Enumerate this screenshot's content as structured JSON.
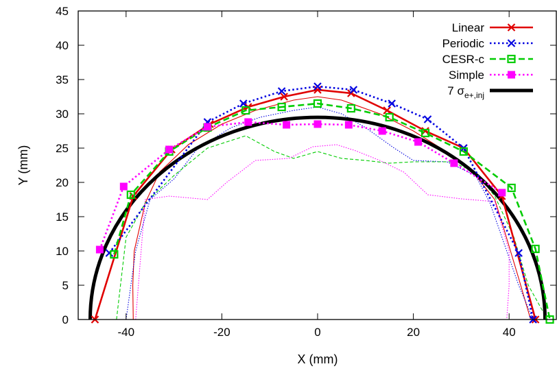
{
  "chart_data": {
    "type": "line",
    "xlabel": "X (mm)",
    "ylabel": "Y (mm)",
    "xlim": [
      -50,
      50
    ],
    "ylim": [
      0,
      45
    ],
    "xticks": [
      -40,
      -20,
      0,
      20,
      40
    ],
    "yticks": [
      0,
      5,
      10,
      15,
      20,
      25,
      30,
      35,
      40,
      45
    ],
    "grid": false,
    "legend_position": "top-right",
    "series": [
      {
        "name": "Linear",
        "color": "#e00000",
        "dash": "solid",
        "marker": "x",
        "x": [
          -46.5,
          -38.5,
          -30.5,
          -22.5,
          -14.5,
          -7.0,
          0,
          7.0,
          14.5,
          22.5,
          30.5,
          38.5,
          45.5
        ],
        "y": [
          0,
          18,
          24.8,
          28.5,
          31.0,
          32.5,
          33.5,
          33.0,
          30.5,
          27.5,
          25.0,
          18.0,
          0
        ]
      },
      {
        "name": "Periodic",
        "color": "#0000e0",
        "dash": "dotted",
        "marker": "x",
        "x": [
          -43.5,
          -23,
          -15.5,
          -7.5,
          0,
          7.5,
          15.5,
          23,
          30.5,
          42,
          45
        ],
        "y": [
          9.7,
          28.8,
          31.5,
          33.3,
          34.0,
          33.5,
          31.5,
          29.2,
          25.0,
          9.7,
          0
        ]
      },
      {
        "name": "CESR-c",
        "color": "#00cc00",
        "dash": "dashed",
        "marker": "square",
        "x": [
          -42.5,
          -39,
          -31,
          -23,
          -15,
          -7.5,
          0,
          7,
          15,
          22.5,
          30.5,
          40.5,
          45.5,
          48.5
        ],
        "y": [
          9.5,
          18.2,
          24.5,
          28.0,
          30.5,
          31.0,
          31.5,
          30.8,
          29.5,
          27.2,
          24.5,
          19.2,
          10.3,
          0
        ]
      },
      {
        "name": "Simple",
        "color": "#ff00ff",
        "dash": "dotted",
        "marker": "filled-square",
        "x": [
          -45.5,
          -40.5,
          -31,
          -23,
          -14.5,
          -6.5,
          0,
          6.5,
          13.5,
          21,
          28.5,
          38.5
        ],
        "y": [
          10.2,
          19.4,
          24.8,
          28.1,
          28.8,
          28.4,
          28.5,
          28.4,
          27.5,
          25.9,
          22.8,
          18.5
        ]
      },
      {
        "name": "7 σe+,inj",
        "color": "#000000",
        "dash": "solid",
        "marker": "none",
        "ellipse_semi_axes": [
          47.5,
          29.5
        ]
      }
    ],
    "thin_curves": [
      {
        "color": "#e00000",
        "dash": "solid",
        "x": [
          -38.5,
          -38.6,
          -38.3,
          -36,
          -33,
          -27,
          -20,
          -13,
          -5,
          0,
          5,
          13,
          20,
          28,
          33,
          37,
          39,
          42,
          44.5
        ],
        "y": [
          0,
          5,
          10,
          17,
          21.5,
          25.5,
          28.5,
          30.5,
          32,
          32.5,
          32,
          30,
          27.5,
          24,
          21,
          17.5,
          13,
          6,
          0
        ]
      },
      {
        "color": "#0000e0",
        "dash": "dotted",
        "x": [
          -40,
          -38,
          -35,
          -30,
          -25,
          -18,
          -12,
          -5,
          0,
          5,
          10,
          16,
          20,
          27,
          33,
          36,
          38,
          42,
          45
        ],
        "y": [
          0,
          10,
          17.5,
          20.5,
          25,
          28,
          29.5,
          30.5,
          31,
          30,
          28,
          25,
          23.2,
          23,
          21,
          17,
          13,
          5,
          0
        ]
      },
      {
        "color": "#00cc00",
        "dash": "dashed",
        "x": [
          -42,
          -40,
          -36,
          -30,
          -23,
          -15,
          -9,
          -5,
          0,
          5,
          10,
          15,
          20,
          28,
          33,
          37,
          41,
          44,
          48
        ],
        "y": [
          0,
          12,
          17,
          21,
          25,
          26.8,
          24.5,
          23.5,
          24.5,
          23.5,
          23.2,
          22.8,
          23,
          23,
          21.5,
          18,
          12,
          5,
          0
        ]
      },
      {
        "color": "#ff00ff",
        "dash": "dotted",
        "x": [
          -38,
          -36,
          -31,
          -23,
          -19,
          -13,
          -6,
          -1,
          4,
          8,
          13,
          18,
          23,
          30,
          37,
          40,
          40,
          39.5
        ],
        "y": [
          0,
          17.5,
          18,
          17.5,
          20,
          23.2,
          23.5,
          25.2,
          25.5,
          24.6,
          23.2,
          21.5,
          18.2,
          17.6,
          17.2,
          10,
          5,
          0
        ]
      }
    ]
  }
}
